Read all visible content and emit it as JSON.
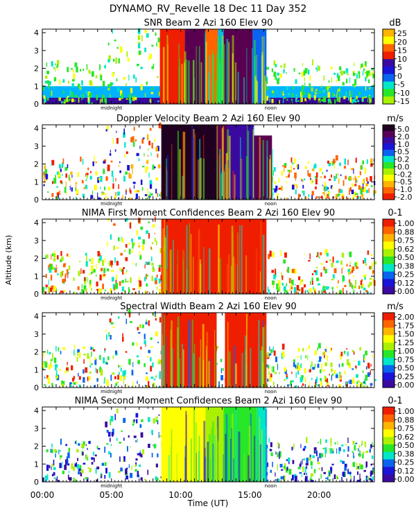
{
  "figure": {
    "title": "DYNAMO_RV_Revelle  18 Dec 11 Day 352",
    "y_axis_label": "Altitude (km)",
    "x_axis_label": "Time (UT)",
    "x_tick_labels": [
      "00:00",
      "05:00",
      "10:00",
      "15:00",
      "20:00"
    ],
    "x_ticks_hours": [
      0,
      5,
      10,
      15,
      20
    ],
    "x_range_hours": [
      0,
      24
    ],
    "marker_labels": {
      "midnight": "midnight",
      "noon": "noon"
    },
    "marker_hours": {
      "midnight": 5.0,
      "noon": 16.5
    }
  },
  "colors": {
    "scale": [
      "#5a0050",
      "#3a0aa0",
      "#1a14d8",
      "#0a64f0",
      "#00b4ff",
      "#00e6c8",
      "#28e628",
      "#aaf000",
      "#ffff00",
      "#ffb400",
      "#ff6400",
      "#f01e00",
      "#5a005a",
      "#200020"
    ],
    "snr_bg": "#00b4ff",
    "snr_ground": "#3a0aa0"
  },
  "chart_data": [
    {
      "type": "heatmap",
      "title": "SNR Beam 2 Azi 160 Elev 90",
      "unit": "dB",
      "ylim": [
        0,
        4.2
      ],
      "y_ticks": [
        "0",
        "1",
        "2",
        "3",
        "4"
      ],
      "colorbar_labels": [
        "25",
        "20",
        "15",
        "10",
        "5",
        "0",
        "-5",
        "-10",
        "-15"
      ],
      "colorbar_colors": [
        "#ffb400",
        "#ffff00",
        "#ff6400",
        "#f01e00",
        "#3a0aa0",
        "#1a14d8",
        "#0a64f0",
        "#00e6c8",
        "#28e628",
        "#aaf000"
      ],
      "events": [
        {
          "t0": 8.5,
          "t1": 10.3,
          "alt": 4.2,
          "color": "#f01e00"
        },
        {
          "t0": 10.3,
          "t1": 11.8,
          "alt": 4.2,
          "color": "#5a0050"
        },
        {
          "t0": 11.8,
          "t1": 12.7,
          "alt": 4.2,
          "color": "#ff6400"
        },
        {
          "t0": 12.7,
          "t1": 13.1,
          "alt": 4.2,
          "color": "#00b4ff"
        },
        {
          "t0": 13.1,
          "t1": 15.2,
          "alt": 4.2,
          "color": "#5a0050"
        },
        {
          "t0": 15.2,
          "t1": 16.2,
          "alt": 4.2,
          "color": "#0a64f0"
        }
      ]
    },
    {
      "type": "heatmap",
      "title": "Doppler Velocity Beam 2 Azi 160 Elev 90",
      "unit": "m/s",
      "ylim": [
        0,
        4.2
      ],
      "y_ticks": [
        "0",
        "1",
        "2",
        "3",
        "4"
      ],
      "colorbar_labels": [
        "5.0",
        "2.0",
        "1.0",
        "0.5",
        "0.2",
        "0.0",
        "-0.2",
        "-0.5",
        "-1.0",
        "-2.0"
      ],
      "colorbar_colors": [
        "#200020",
        "#5a005a",
        "#3a0aa0",
        "#1a14d8",
        "#0a64f0",
        "#00e6c8",
        "#28e628",
        "#aaf000",
        "#ffff00",
        "#ffb400",
        "#ff6400",
        "#f01e00"
      ],
      "events": [
        {
          "t0": 8.6,
          "t1": 12.6,
          "alt": 4.2,
          "color": "#200020"
        },
        {
          "t0": 12.6,
          "t1": 13.4,
          "alt": 4.2,
          "color": "#5a0050"
        },
        {
          "t0": 13.4,
          "t1": 15.3,
          "alt": 4.2,
          "color": "#3a0aa0"
        },
        {
          "t0": 15.3,
          "t1": 16.6,
          "alt": 3.6,
          "color": "#5a0050"
        }
      ]
    },
    {
      "type": "heatmap",
      "title": "NIMA First Moment Confidences Beam 2 Azi 160 Elev 90",
      "unit": "0-1",
      "ylim": [
        0,
        4.2
      ],
      "y_ticks": [
        "0",
        "1",
        "2",
        "3",
        "4"
      ],
      "colorbar_labels": [
        "1.00",
        "0.88",
        "0.75",
        "0.62",
        "0.50",
        "0.38",
        "0.25",
        "0.12",
        "0.00"
      ],
      "colorbar_colors": [
        "#f01e00",
        "#ff6400",
        "#ffb400",
        "#ffff00",
        "#aaf000",
        "#28e628",
        "#00e6c8",
        "#0a64f0",
        "#1a14d8",
        "#3a0aa0"
      ],
      "events": [
        {
          "t0": 8.6,
          "t1": 16.2,
          "alt": 4.2,
          "color": "#f01e00"
        }
      ]
    },
    {
      "type": "heatmap",
      "title": "Spectral Width Beam 2 Azi 160 Elev 90",
      "unit": "m/s",
      "ylim": [
        0,
        4.2
      ],
      "y_ticks": [
        "0",
        "1",
        "2",
        "3",
        "4"
      ],
      "colorbar_labels": [
        "2.00",
        "1.75",
        "1.50",
        "1.25",
        "1.00",
        "0.75",
        "0.50",
        "0.25",
        "0.00"
      ],
      "colorbar_colors": [
        "#f01e00",
        "#ff6400",
        "#ffb400",
        "#ffff00",
        "#aaf000",
        "#28e628",
        "#00e6c8",
        "#0a64f0",
        "#1a14d8",
        "#3a0aa0"
      ],
      "events": [
        {
          "t0": 8.6,
          "t1": 12.6,
          "alt": 4.2,
          "color": "#f01e00"
        },
        {
          "t0": 13.2,
          "t1": 16.2,
          "alt": 4.2,
          "color": "#f01e00"
        }
      ]
    },
    {
      "type": "heatmap",
      "title": "NIMA Second Moment Confidences Beam 2 Azi 160 Elev 90",
      "unit": "0-1",
      "ylim": [
        0,
        4.2
      ],
      "y_ticks": [
        "0",
        "1",
        "2",
        "3",
        "4"
      ],
      "colorbar_labels": [
        "1.00",
        "0.88",
        "0.75",
        "0.62",
        "0.50",
        "0.38",
        "0.25",
        "0.12",
        "0.00"
      ],
      "colorbar_colors": [
        "#f01e00",
        "#ff6400",
        "#ffb400",
        "#ffff00",
        "#aaf000",
        "#28e628",
        "#00e6c8",
        "#0a64f0",
        "#1a14d8",
        "#3a0aa0"
      ],
      "events": [
        {
          "t0": 8.6,
          "t1": 11.8,
          "alt": 4.2,
          "color": "#ffff00"
        },
        {
          "t0": 11.8,
          "t1": 13.1,
          "alt": 4.2,
          "color": "#aaf000"
        },
        {
          "t0": 13.1,
          "t1": 15.5,
          "alt": 4.2,
          "color": "#28e628"
        },
        {
          "t0": 15.5,
          "t1": 16.2,
          "alt": 4.2,
          "color": "#00e6c8"
        }
      ]
    }
  ]
}
